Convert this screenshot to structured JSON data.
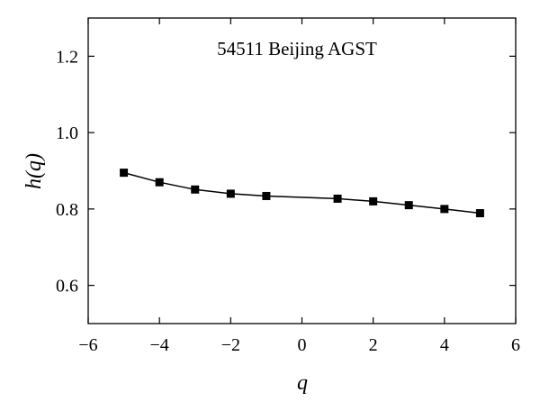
{
  "chart_data": {
    "type": "line",
    "title": "54511 Beijing AGST",
    "xlabel": "q",
    "ylabel": "h(q)",
    "xlim": [
      -6,
      6
    ],
    "ylim": [
      0.5,
      1.3
    ],
    "x_ticks": [
      -6,
      -4,
      -2,
      0,
      2,
      4,
      6
    ],
    "x_tick_labels": [
      "−6",
      "−4",
      "−2",
      "0",
      "2",
      "4",
      "6"
    ],
    "y_ticks": [
      0.6,
      0.8,
      1.0,
      1.2
    ],
    "y_tick_labels": [
      "0.6",
      "0.8",
      "1.0",
      "1.2"
    ],
    "grid": false,
    "marker": "square",
    "series": [
      {
        "x": [
          -5,
          -4,
          -3,
          -2,
          -1,
          1,
          2,
          3,
          4,
          5
        ],
        "y": [
          0.895,
          0.87,
          0.851,
          0.84,
          0.834,
          0.827,
          0.82,
          0.81,
          0.8,
          0.789
        ],
        "color": "#000000"
      }
    ]
  }
}
